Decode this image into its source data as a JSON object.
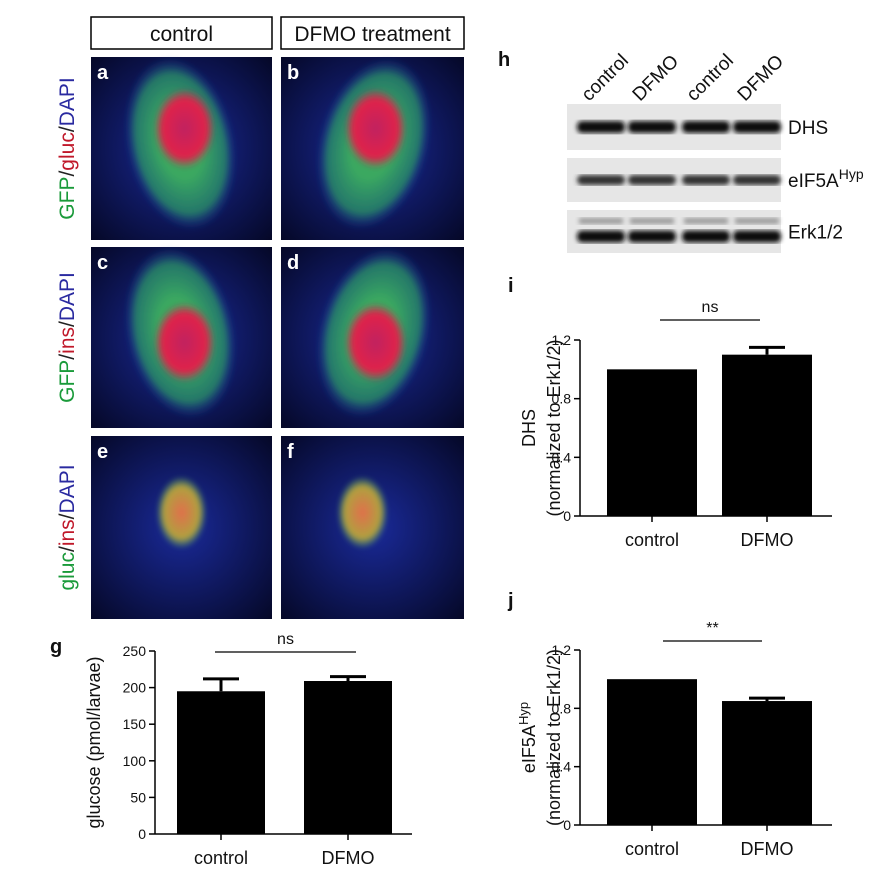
{
  "columns": [
    "control",
    "DFMO treatment"
  ],
  "rows": [
    [
      {
        "text": "GFP",
        "color": "#1a9a3a"
      },
      {
        "text": "/",
        "color": "#222222"
      },
      {
        "text": "gluc",
        "color": "#c0182a"
      },
      {
        "text": "/",
        "color": "#222222"
      },
      {
        "text": "DAPI",
        "color": "#2a2aa0"
      }
    ],
    [
      {
        "text": "GFP",
        "color": "#1a9a3a"
      },
      {
        "text": "/",
        "color": "#222222"
      },
      {
        "text": "ins",
        "color": "#c0182a"
      },
      {
        "text": "/",
        "color": "#222222"
      },
      {
        "text": "DAPI",
        "color": "#2a2aa0"
      }
    ],
    [
      {
        "text": "gluc",
        "color": "#1a9a3a"
      },
      {
        "text": "/",
        "color": "#222222"
      },
      {
        "text": "ins",
        "color": "#c0182a"
      },
      {
        "text": "/",
        "color": "#222222"
      },
      {
        "text": "DAPI",
        "color": "#2a2aa0"
      }
    ]
  ],
  "image_letters": [
    "a",
    "b",
    "c",
    "d",
    "e",
    "f"
  ],
  "blot": {
    "letter": "h",
    "lanes": [
      "control",
      "DFMO",
      "control",
      "DFMO"
    ],
    "bands": [
      {
        "label": "DHS"
      },
      {
        "label": "eIF5A",
        "sup": "Hyp"
      },
      {
        "label": "Erk1/2"
      }
    ]
  },
  "chart_data": [
    {
      "type": "bar",
      "letter": "g",
      "y_label": [
        "glucose (pmol/larvae)"
      ],
      "categories": [
        "control",
        "DFMO"
      ],
      "values": [
        195,
        209
      ],
      "errors": [
        17,
        6
      ],
      "color": "#000000",
      "ylim": [
        0,
        250
      ],
      "yticks": [
        0,
        50,
        100,
        150,
        200,
        250
      ],
      "annotation": "ns"
    },
    {
      "type": "bar",
      "letter": "i",
      "y_label": [
        "DHS",
        "(normalized to Erk1/2)"
      ],
      "categories": [
        "control",
        "DFMO"
      ],
      "values": [
        1.0,
        1.1
      ],
      "errors": [
        null,
        0.05
      ],
      "color": "#000000",
      "ylim": [
        0,
        1.2
      ],
      "yticks": [
        0,
        0.4,
        0.8,
        1.2
      ],
      "annotation": "ns"
    },
    {
      "type": "bar",
      "letter": "j",
      "y_label": [
        "eIF5A",
        "(normalized to Erk1/2)"
      ],
      "y_label_sup": "Hyp",
      "categories": [
        "control",
        "DFMO"
      ],
      "values": [
        1.0,
        0.85
      ],
      "errors": [
        null,
        0.02
      ],
      "color": "#000000",
      "ylim": [
        0,
        1.2
      ],
      "yticks": [
        0,
        0.4,
        0.8,
        1.2
      ],
      "annotation": "**"
    }
  ]
}
